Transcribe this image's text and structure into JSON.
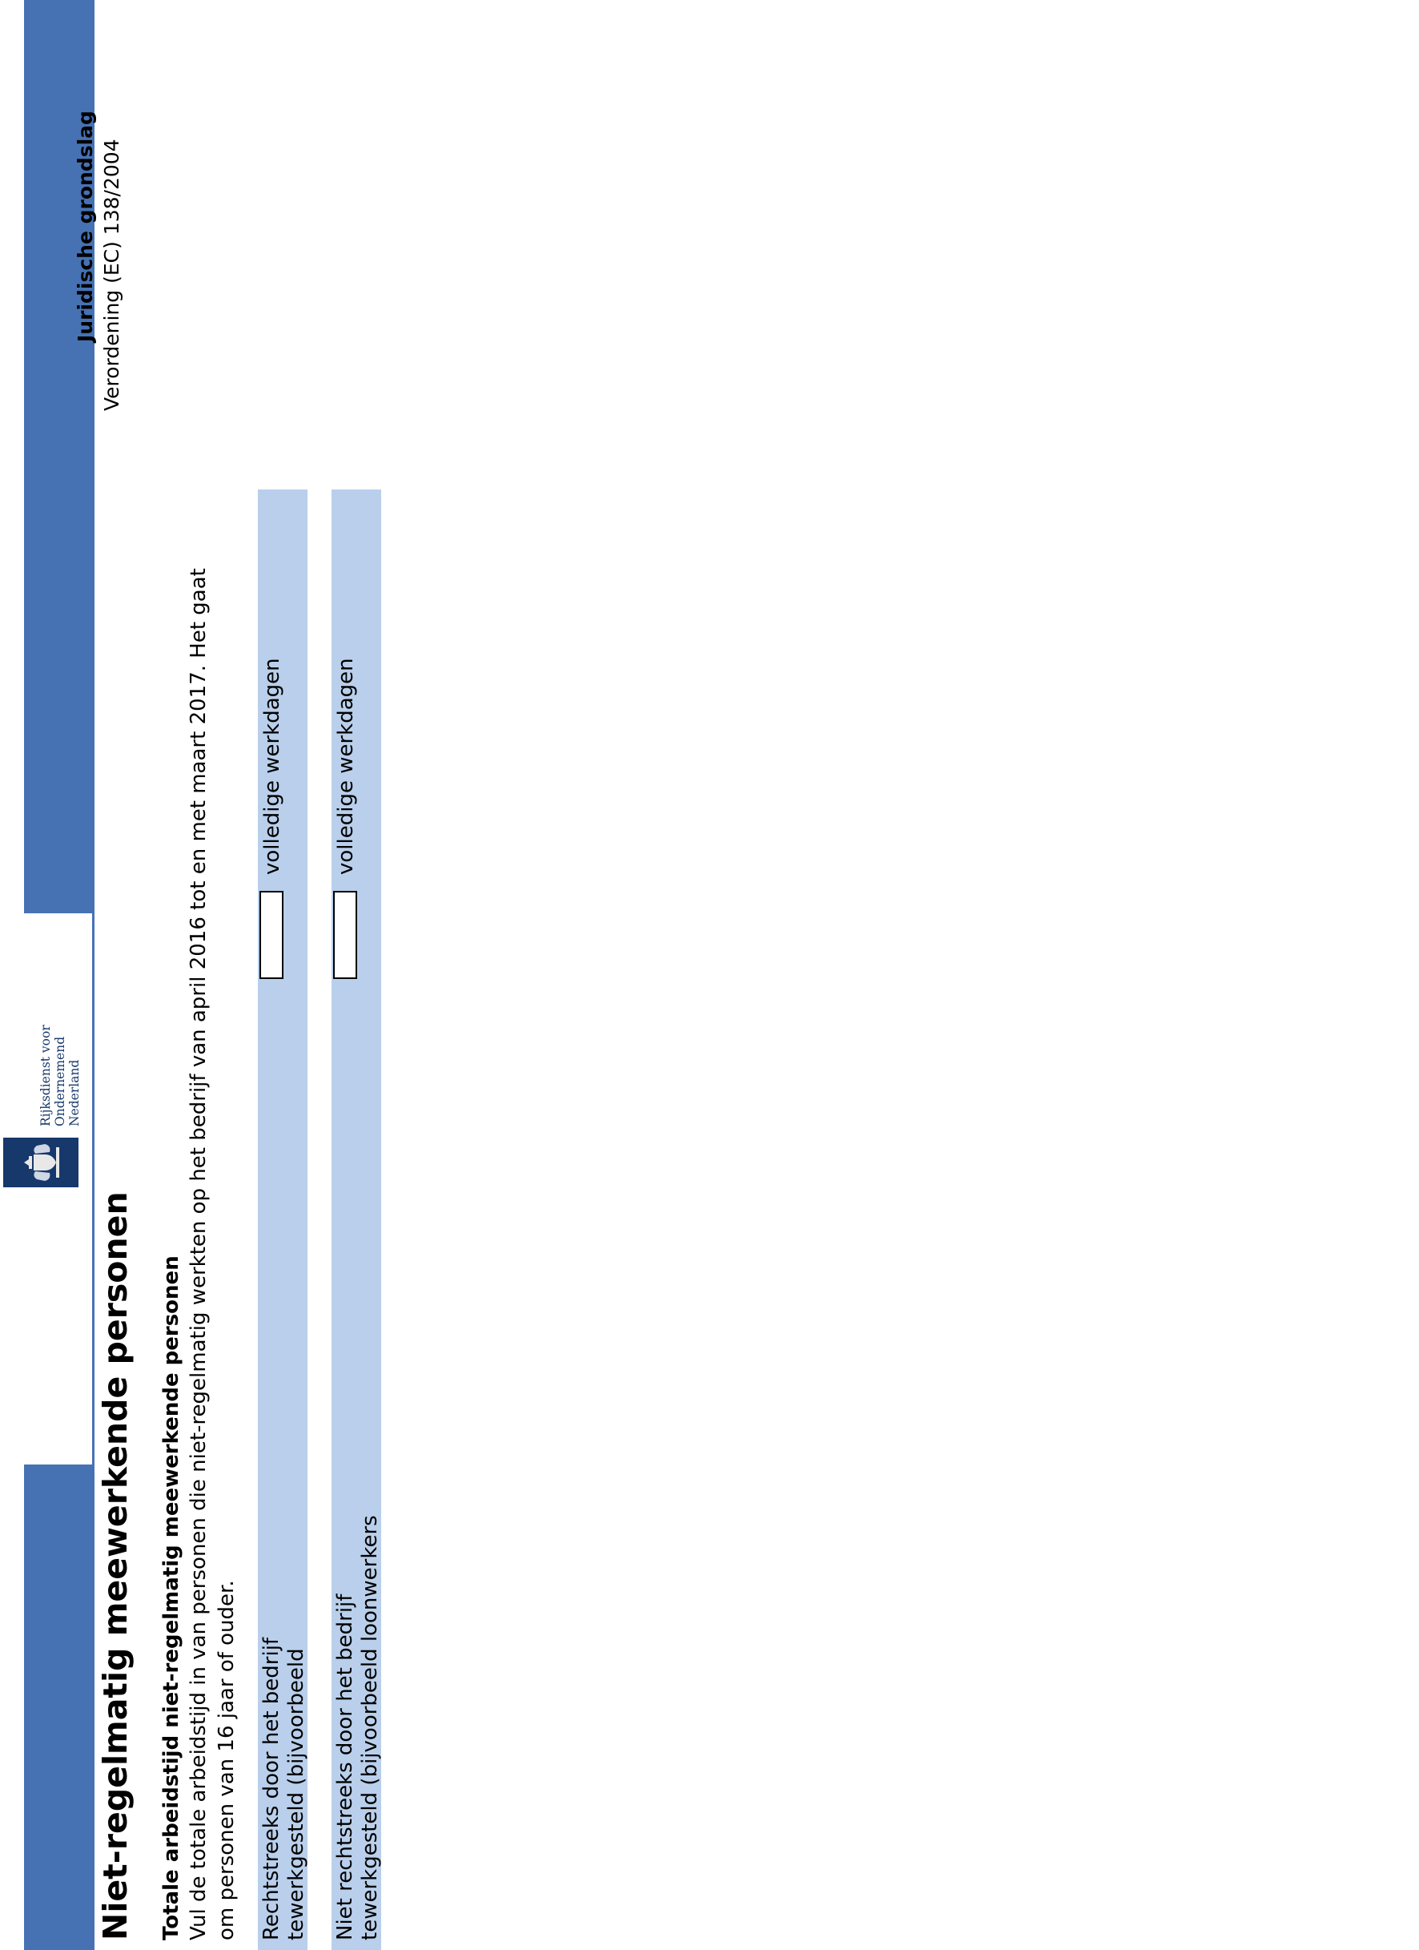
{
  "header": {
    "logo_text_line1": "Rijksdienst voor Ondernemend",
    "logo_text_line2": "Nederland",
    "emblem_icon": "crest-icon"
  },
  "page_title": "Niet-regelmatig meewerkende personen",
  "legal": {
    "heading": "Juridische grondslag",
    "text": "Verordening (EC) 138/2004"
  },
  "section": {
    "heading": "Totale arbeidstijd niet-regelmatig meewerkende personen",
    "description": "Vul de totale arbeidstijd in van personen die niet-regelmatig werkten op het bedrijf van april 2016 tot en met maart 2017. Het gaat om personen van 16 jaar of ouder."
  },
  "questions": [
    {
      "label": "Rechtstreeks door het bedrijf tewerkgesteld (bijvoorbeeld arbeidskrachten voor bepaald werk of gelegenheidswerk)",
      "value": "",
      "unit": "volledige werkdagen"
    },
    {
      "label": "Niet rechtstreeks door het bedrijf tewerkgesteld (bijvoorbeeld loonwerkers of arbeidskrachten van werktuigencoöperaties)",
      "value": "",
      "unit": "volledige werkdagen"
    }
  ],
  "colors": {
    "band": "#4672b4",
    "row": "#b9cfeb",
    "logo": "#16386b"
  }
}
